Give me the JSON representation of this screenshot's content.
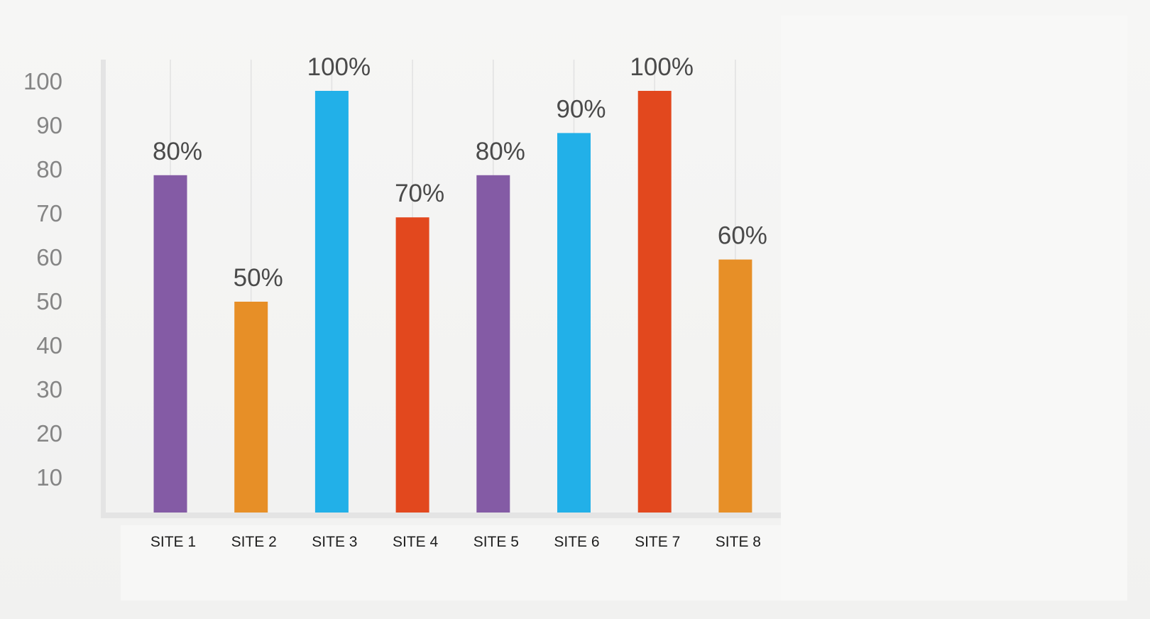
{
  "chart_data": {
    "type": "bar",
    "categories": [
      "SITE 1",
      "SITE 2",
      "SITE 3",
      "SITE 4",
      "SITE 5",
      "SITE 6",
      "SITE 7",
      "SITE 8"
    ],
    "values": [
      80,
      50,
      100,
      70,
      80,
      90,
      100,
      60
    ],
    "data_labels": [
      "80%",
      "50%",
      "100%",
      "70%",
      "80%",
      "90%",
      "100%",
      "60%"
    ],
    "bar_colors": [
      "#845ba5",
      "#e78f27",
      "#22b0e8",
      "#e2481e",
      "#845ba5",
      "#22b0e8",
      "#e2481e",
      "#e78f27"
    ],
    "yticks": [
      10,
      20,
      30,
      40,
      50,
      60,
      70,
      80,
      90,
      100
    ],
    "ylim": [
      0,
      100
    ],
    "grid": "vertical lines behind bars",
    "title": "",
    "xlabel": "",
    "ylabel": ""
  }
}
